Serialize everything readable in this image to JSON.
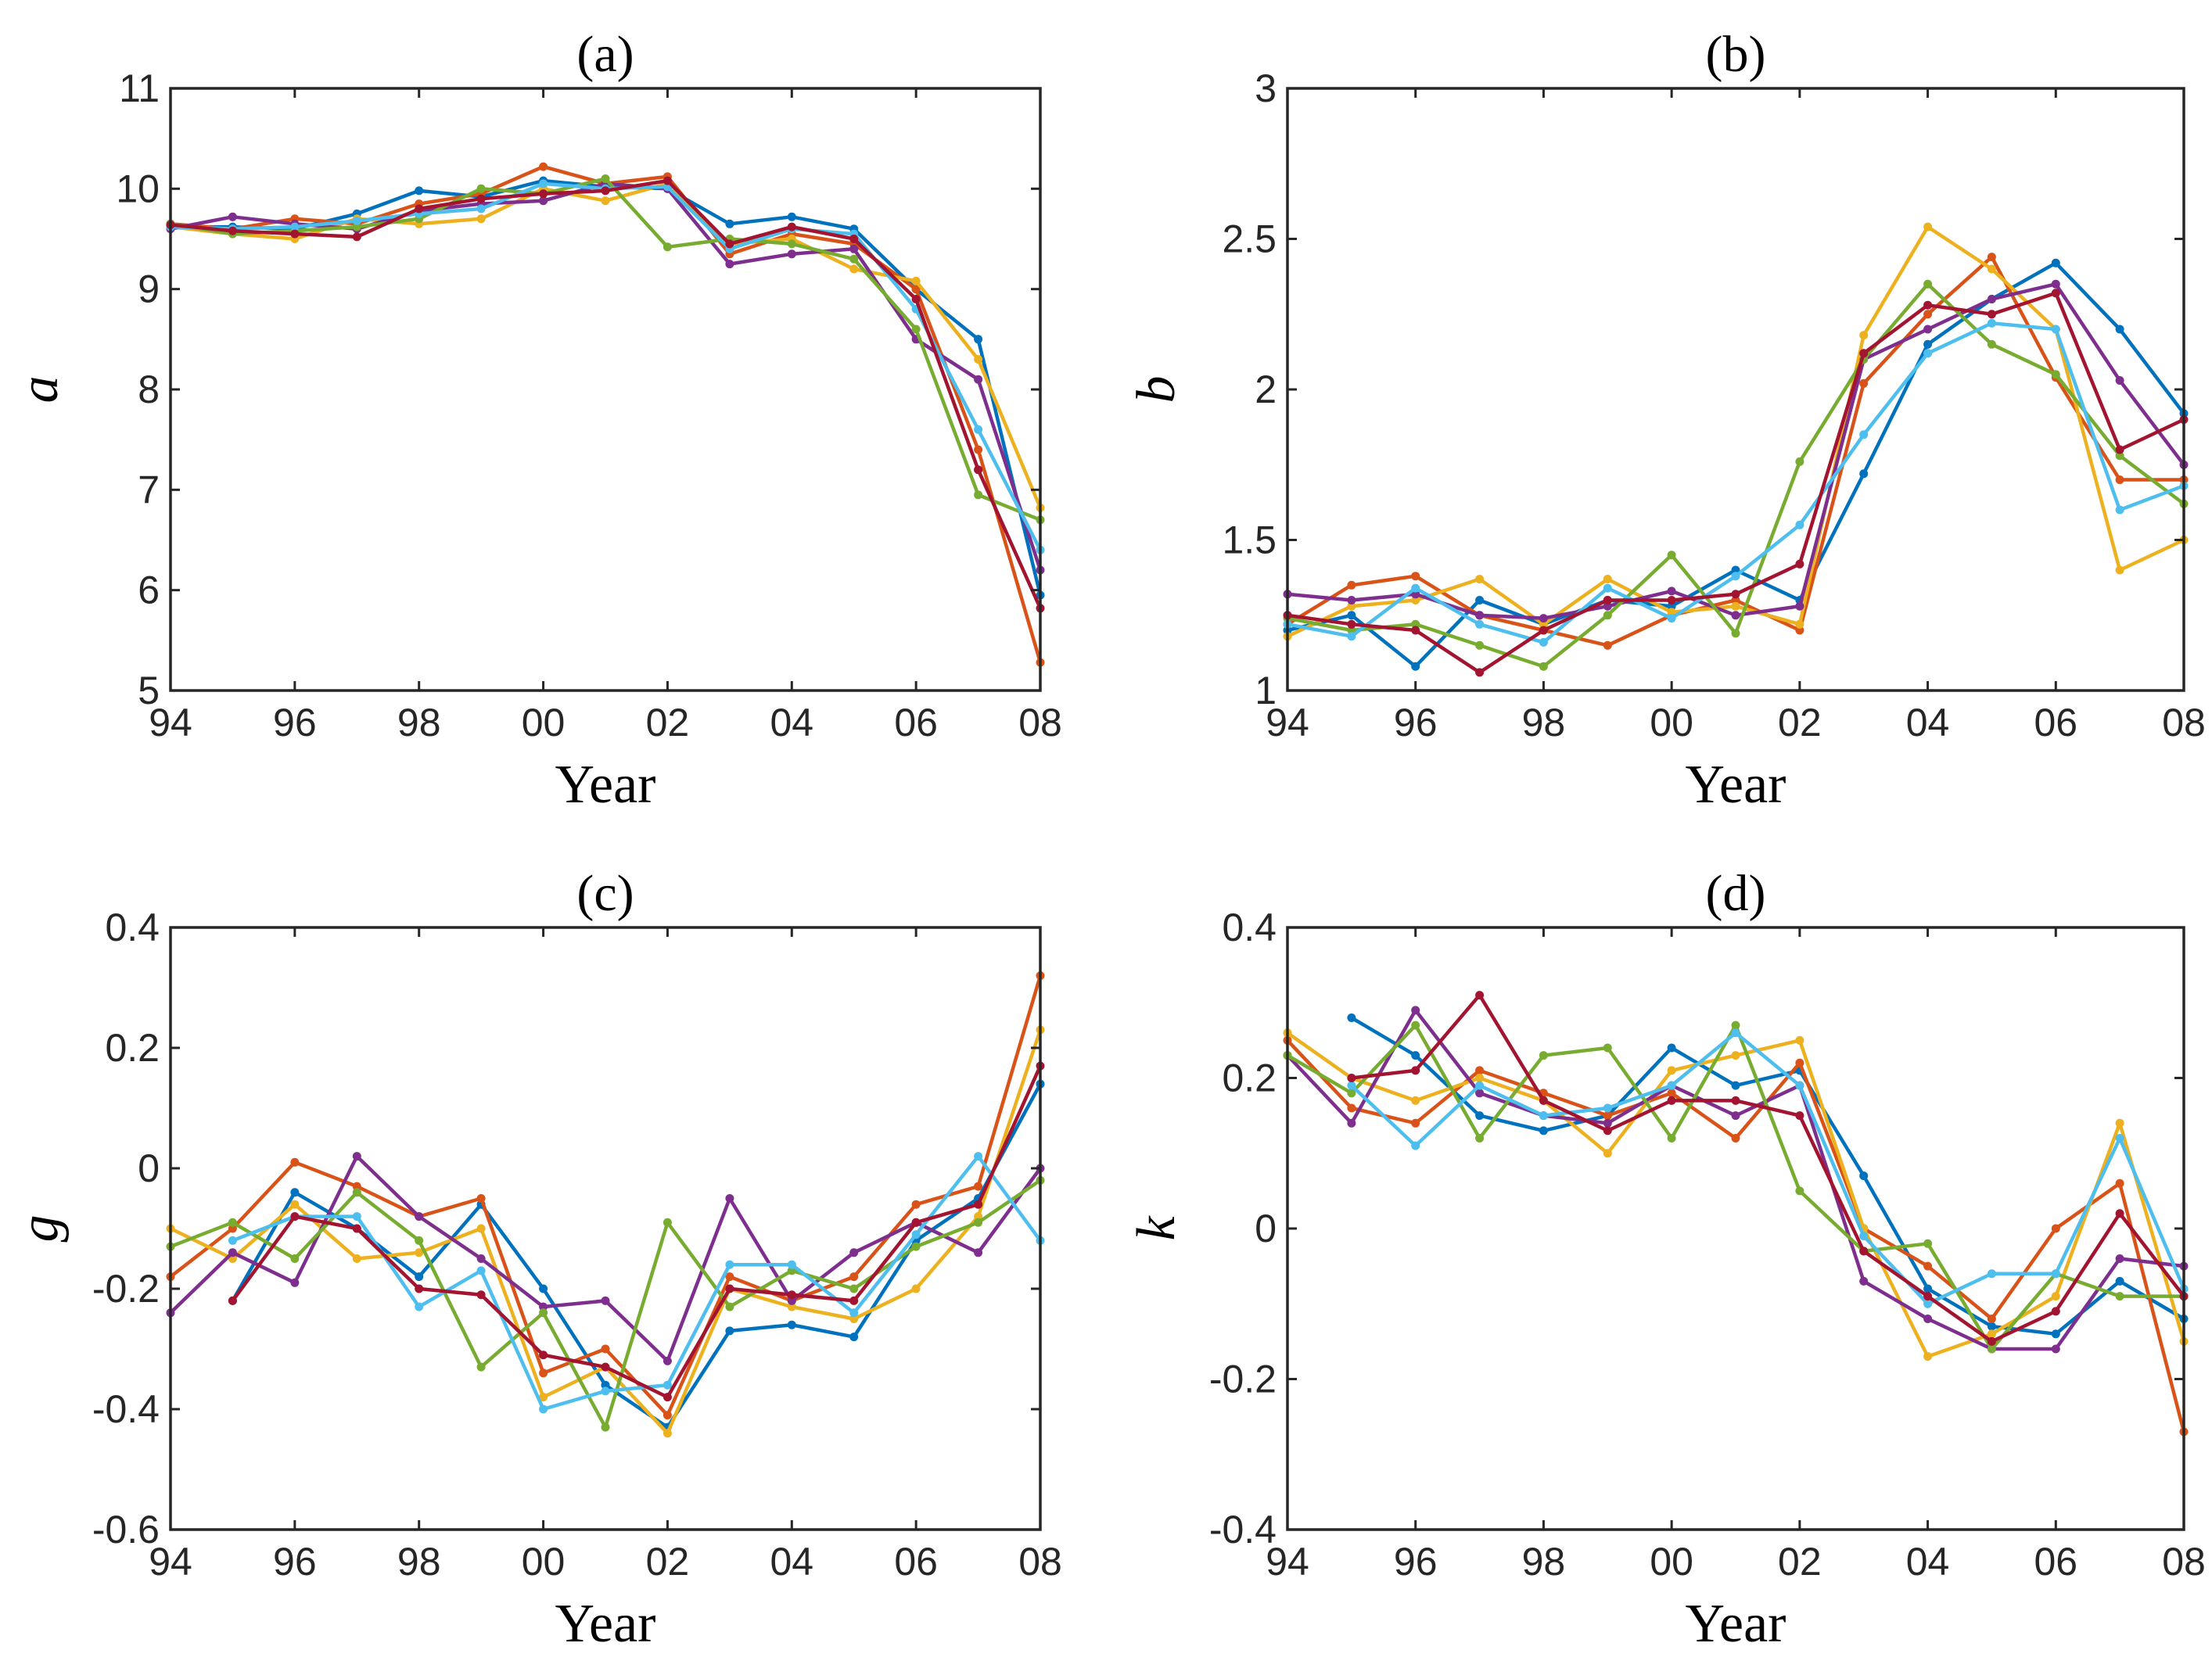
{
  "colors": [
    "#0072BD",
    "#D95319",
    "#EDB120",
    "#7E2F8E",
    "#77AC30",
    "#4DBEEE",
    "#A2142F"
  ],
  "chart_data": [
    {
      "type": "line",
      "title": "(a)",
      "xlabel": "Year",
      "ylabel": "a",
      "xlim": [
        1994,
        2008
      ],
      "ylim": [
        5,
        11
      ],
      "x": [
        1994,
        1995,
        1996,
        1997,
        1998,
        1999,
        2000,
        2001,
        2002,
        2003,
        2004,
        2005,
        2006,
        2007,
        2008
      ],
      "xticks": [
        1994,
        1996,
        1998,
        2000,
        2002,
        2004,
        2006,
        2008
      ],
      "xticklabels": [
        "94",
        "96",
        "98",
        "00",
        "02",
        "04",
        "06",
        "08"
      ],
      "yticks": [
        5,
        6,
        7,
        8,
        9,
        10,
        11
      ],
      "yticklabels": [
        "5",
        "6",
        "7",
        "8",
        "9",
        "10",
        "11"
      ],
      "series": [
        {
          "values": [
            9.62,
            9.62,
            9.6,
            9.75,
            9.98,
            9.92,
            10.08,
            10.02,
            10.0,
            9.65,
            9.72,
            9.6,
            9.0,
            8.5,
            5.95
          ]
        },
        {
          "values": [
            9.65,
            9.6,
            9.7,
            9.65,
            9.85,
            9.95,
            10.22,
            10.05,
            10.12,
            9.35,
            9.55,
            9.45,
            9.0,
            7.4,
            5.28
          ]
        },
        {
          "values": [
            9.62,
            9.55,
            9.5,
            9.7,
            9.65,
            9.7,
            10.0,
            9.88,
            10.05,
            9.45,
            9.5,
            9.2,
            9.08,
            8.3,
            6.82
          ]
        },
        {
          "values": [
            9.6,
            9.72,
            9.65,
            9.6,
            9.78,
            9.85,
            9.88,
            10.05,
            10.0,
            9.25,
            9.35,
            9.4,
            8.5,
            8.1,
            6.2
          ]
        },
        {
          "values": [
            9.65,
            9.55,
            9.58,
            9.62,
            9.7,
            10.0,
            9.95,
            10.1,
            9.42,
            9.5,
            9.45,
            9.3,
            8.6,
            6.95,
            6.7
          ]
        },
        {
          "values": [
            9.62,
            9.6,
            9.62,
            9.68,
            9.75,
            9.8,
            10.05,
            10.0,
            10.02,
            9.4,
            9.6,
            9.55,
            8.8,
            7.6,
            6.4
          ]
        },
        {
          "values": [
            9.64,
            9.58,
            9.55,
            9.52,
            9.8,
            9.9,
            9.95,
            9.98,
            10.08,
            9.45,
            9.62,
            9.5,
            8.9,
            7.2,
            5.82
          ]
        }
      ]
    },
    {
      "type": "line",
      "title": "(b)",
      "xlabel": "Year",
      "ylabel": "b",
      "xlim": [
        1994,
        2008
      ],
      "ylim": [
        1,
        3
      ],
      "x": [
        1994,
        1995,
        1996,
        1997,
        1998,
        1999,
        2000,
        2001,
        2002,
        2003,
        2004,
        2005,
        2006,
        2007,
        2008
      ],
      "xticks": [
        1994,
        1996,
        1998,
        2000,
        2002,
        2004,
        2006,
        2008
      ],
      "xticklabels": [
        "94",
        "96",
        "98",
        "00",
        "02",
        "04",
        "06",
        "08"
      ],
      "yticks": [
        1,
        1.5,
        2,
        2.5,
        3
      ],
      "yticklabels": [
        "1",
        "1.5",
        "2",
        "2.5",
        "3"
      ],
      "series": [
        {
          "values": [
            1.2,
            1.25,
            1.08,
            1.3,
            1.22,
            1.3,
            1.28,
            1.4,
            1.3,
            1.72,
            2.15,
            2.3,
            2.42,
            2.2,
            1.92
          ]
        },
        {
          "values": [
            1.22,
            1.35,
            1.38,
            1.25,
            1.2,
            1.15,
            1.25,
            1.3,
            1.2,
            2.02,
            2.25,
            2.44,
            2.04,
            1.7,
            1.7
          ]
        },
        {
          "values": [
            1.18,
            1.28,
            1.3,
            1.37,
            1.22,
            1.37,
            1.26,
            1.28,
            1.22,
            2.18,
            2.54,
            2.4,
            2.2,
            1.4,
            1.5
          ]
        },
        {
          "values": [
            1.32,
            1.3,
            1.32,
            1.25,
            1.24,
            1.28,
            1.33,
            1.25,
            1.28,
            2.1,
            2.2,
            2.3,
            2.35,
            2.03,
            1.75
          ]
        },
        {
          "values": [
            1.24,
            1.2,
            1.22,
            1.15,
            1.08,
            1.25,
            1.45,
            1.19,
            1.76,
            2.1,
            2.35,
            2.15,
            2.05,
            1.78,
            1.62
          ]
        },
        {
          "values": [
            1.22,
            1.18,
            1.34,
            1.22,
            1.16,
            1.34,
            1.24,
            1.38,
            1.55,
            1.85,
            2.12,
            2.22,
            2.2,
            1.6,
            1.68
          ]
        },
        {
          "values": [
            1.25,
            1.22,
            1.2,
            1.06,
            1.2,
            1.3,
            1.3,
            1.32,
            1.42,
            2.12,
            2.28,
            2.25,
            2.32,
            1.8,
            1.9
          ]
        }
      ]
    },
    {
      "type": "line",
      "title": "(c)",
      "xlabel": "Year",
      "ylabel": "g",
      "xlim": [
        1994,
        2008
      ],
      "ylim": [
        -0.6,
        0.4
      ],
      "x": [
        1994,
        1995,
        1996,
        1997,
        1998,
        1999,
        2000,
        2001,
        2002,
        2003,
        2004,
        2005,
        2006,
        2007,
        2008
      ],
      "xticks": [
        1994,
        1996,
        1998,
        2000,
        2002,
        2004,
        2006,
        2008
      ],
      "xticklabels": [
        "94",
        "96",
        "98",
        "00",
        "02",
        "04",
        "06",
        "08"
      ],
      "yticks": [
        -0.6,
        -0.4,
        -0.2,
        0,
        0.2,
        0.4
      ],
      "yticklabels": [
        "-0.6",
        "-0.4",
        "-0.2",
        "0",
        "0.2",
        "0.4"
      ],
      "series": [
        {
          "values": [
            null,
            -0.22,
            -0.04,
            -0.1,
            -0.18,
            -0.06,
            -0.2,
            -0.36,
            -0.43,
            -0.27,
            -0.26,
            -0.28,
            -0.12,
            -0.05,
            0.14
          ]
        },
        {
          "values": [
            -0.18,
            -0.1,
            0.01,
            -0.03,
            -0.08,
            -0.05,
            -0.34,
            -0.3,
            -0.41,
            -0.18,
            -0.22,
            -0.18,
            -0.06,
            -0.03,
            0.32
          ]
        },
        {
          "values": [
            -0.1,
            -0.15,
            -0.06,
            -0.15,
            -0.14,
            -0.1,
            -0.38,
            -0.33,
            -0.44,
            -0.2,
            -0.23,
            -0.25,
            -0.2,
            -0.08,
            0.23
          ]
        },
        {
          "values": [
            -0.24,
            -0.14,
            -0.19,
            0.02,
            -0.08,
            -0.15,
            -0.23,
            -0.22,
            -0.32,
            -0.05,
            -0.22,
            -0.14,
            -0.09,
            -0.14,
            0.0
          ]
        },
        {
          "values": [
            -0.13,
            -0.09,
            -0.15,
            -0.04,
            -0.12,
            -0.33,
            -0.24,
            -0.43,
            -0.09,
            -0.23,
            -0.17,
            -0.2,
            -0.13,
            -0.09,
            -0.02
          ]
        },
        {
          "values": [
            null,
            -0.12,
            -0.08,
            -0.08,
            -0.23,
            -0.17,
            -0.4,
            -0.37,
            -0.36,
            -0.16,
            -0.16,
            -0.24,
            -0.11,
            0.02,
            -0.12
          ]
        },
        {
          "values": [
            null,
            -0.22,
            -0.08,
            -0.1,
            -0.2,
            -0.21,
            -0.31,
            -0.33,
            -0.38,
            -0.2,
            -0.21,
            -0.22,
            -0.09,
            -0.06,
            0.17
          ]
        }
      ]
    },
    {
      "type": "line",
      "title": "(d)",
      "xlabel": "Year",
      "ylabel": "k",
      "xlim": [
        1994,
        2008
      ],
      "ylim": [
        -0.4,
        0.4
      ],
      "x": [
        1994,
        1995,
        1996,
        1997,
        1998,
        1999,
        2000,
        2001,
        2002,
        2003,
        2004,
        2005,
        2006,
        2007,
        2008
      ],
      "xticks": [
        1994,
        1996,
        1998,
        2000,
        2002,
        2004,
        2006,
        2008
      ],
      "xticklabels": [
        "94",
        "96",
        "98",
        "00",
        "02",
        "04",
        "06",
        "08"
      ],
      "yticks": [
        -0.4,
        -0.2,
        0,
        0.2,
        0.4
      ],
      "yticklabels": [
        "-0.4",
        "-0.2",
        "0",
        "0.2",
        "0.4"
      ],
      "series": [
        {
          "values": [
            null,
            0.28,
            0.23,
            0.15,
            0.13,
            0.15,
            0.24,
            0.19,
            0.21,
            0.07,
            -0.08,
            -0.13,
            -0.14,
            -0.07,
            -0.12
          ]
        },
        {
          "values": [
            0.25,
            0.16,
            0.14,
            0.21,
            0.18,
            0.15,
            0.18,
            0.12,
            0.22,
            0.0,
            -0.05,
            -0.12,
            0.0,
            0.06,
            -0.27
          ]
        },
        {
          "values": [
            0.26,
            0.2,
            0.17,
            0.2,
            0.17,
            0.1,
            0.21,
            0.23,
            0.25,
            0.0,
            -0.17,
            -0.14,
            -0.09,
            0.14,
            -0.15
          ]
        },
        {
          "values": [
            0.23,
            0.14,
            0.29,
            0.18,
            0.15,
            0.14,
            0.19,
            0.15,
            0.19,
            -0.07,
            -0.12,
            -0.16,
            -0.16,
            -0.04,
            -0.05
          ]
        },
        {
          "values": [
            0.23,
            0.18,
            0.27,
            0.12,
            0.23,
            0.24,
            0.12,
            0.27,
            0.05,
            -0.03,
            -0.02,
            -0.16,
            -0.06,
            -0.09,
            -0.09
          ]
        },
        {
          "values": [
            null,
            0.19,
            0.11,
            0.19,
            0.15,
            0.16,
            0.19,
            0.26,
            0.19,
            -0.01,
            -0.1,
            -0.06,
            -0.06,
            0.12,
            -0.08
          ]
        },
        {
          "values": [
            null,
            0.2,
            0.21,
            0.31,
            0.17,
            0.13,
            0.17,
            0.17,
            0.15,
            -0.03,
            -0.09,
            -0.15,
            -0.11,
            0.02,
            -0.09
          ]
        }
      ]
    }
  ]
}
